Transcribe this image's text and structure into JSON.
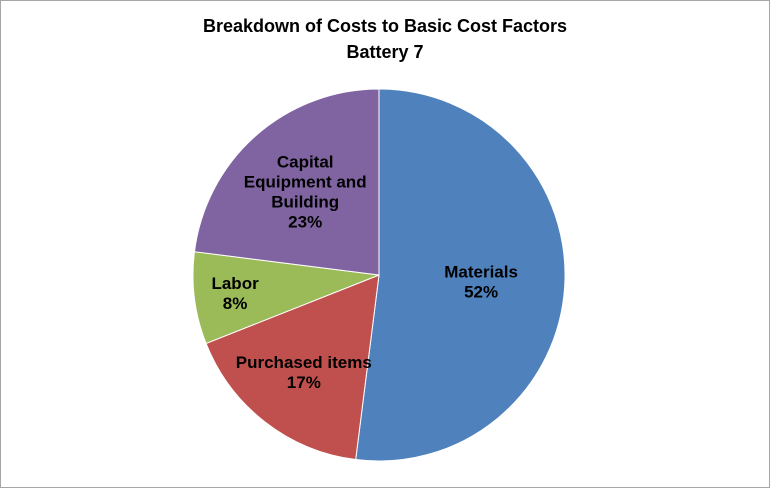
{
  "chart_data": {
    "type": "pie",
    "title": "Breakdown of Costs to Basic Cost Factors",
    "subtitle": "Battery 7",
    "slices": [
      {
        "label": [
          "Materials"
        ],
        "value": 52,
        "value_label": "52%",
        "color": "#4f81bd"
      },
      {
        "label": [
          "Purchased items"
        ],
        "value": 17,
        "value_label": "17%",
        "color": "#c0504d"
      },
      {
        "label": [
          "Labor"
        ],
        "value": 8,
        "value_label": "8%",
        "color": "#9bbb59"
      },
      {
        "label": [
          "Capital",
          "Equipment and",
          "Building"
        ],
        "value": 23,
        "value_label": "23%",
        "color": "#8064a2"
      }
    ],
    "start_angle_deg": 0,
    "direction": "clockwise",
    "legend": "none"
  }
}
